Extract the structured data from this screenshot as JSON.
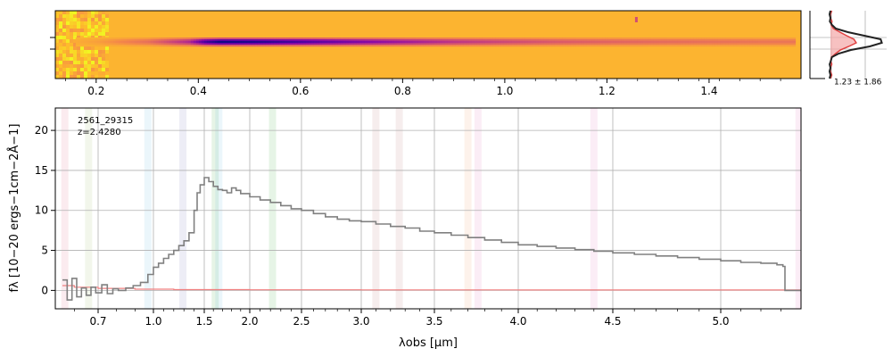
{
  "figure": {
    "object_id": "2561_29315",
    "redshift_label": "z=2.4280",
    "profile_label": "1.23 ± 1.86",
    "colors": {
      "spectrum": "#808080",
      "error": "#f08080",
      "grid": "#b0b0b0",
      "profile_fill": "#f4a6a6",
      "profile_red": "#e04040",
      "profile_line": "#222222"
    }
  },
  "chart_data": [
    {
      "type": "heatmap",
      "name": "2D spectrum",
      "colormap": "plasma",
      "xaxis_ticks": [
        "0.2",
        "0.4",
        "0.6",
        "0.8",
        "1.0",
        "1.2",
        "1.4"
      ],
      "xaxis_tick_values": [
        0.2,
        0.4,
        0.6,
        0.8,
        1.0,
        1.2,
        1.4
      ],
      "xlim": [
        0.12,
        1.58
      ],
      "trace": [
        {
          "x": 0.2,
          "level": 0.06
        },
        {
          "x": 0.3,
          "level": 0.22
        },
        {
          "x": 0.38,
          "level": 0.52
        },
        {
          "x": 0.41,
          "level": 0.85
        },
        {
          "x": 0.44,
          "level": 1.0
        },
        {
          "x": 0.5,
          "level": 0.96
        },
        {
          "x": 0.6,
          "level": 0.84
        },
        {
          "x": 0.7,
          "level": 0.7
        },
        {
          "x": 0.8,
          "level": 0.58
        },
        {
          "x": 0.9,
          "level": 0.46
        },
        {
          "x": 1.0,
          "level": 0.38
        },
        {
          "x": 1.1,
          "level": 0.31
        },
        {
          "x": 1.2,
          "level": 0.27
        },
        {
          "x": 1.3,
          "level": 0.24
        },
        {
          "x": 1.4,
          "level": 0.22
        },
        {
          "x": 1.5,
          "level": 0.2
        },
        {
          "x": 1.56,
          "level": 0.2
        }
      ]
    },
    {
      "type": "line",
      "name": "1D spectrum",
      "xlabel": "λobs [μm]",
      "ylabel": "fλ [10−20 ergs−1cm−2Å−1]",
      "xticks": [
        {
          "label": "0.7",
          "value": 0.7
        },
        {
          "label": "1.0",
          "value": 1.0
        },
        {
          "label": "1.5",
          "value": 1.5
        },
        {
          "label": "2.0",
          "value": 2.0
        },
        {
          "label": "2.5",
          "value": 2.5
        },
        {
          "label": "3.0",
          "value": 3.0
        },
        {
          "label": "3.5",
          "value": 3.5
        },
        {
          "label": "4.0",
          "value": 4.0
        },
        {
          "label": "4.5",
          "value": 4.5
        },
        {
          "label": "5.0",
          "value": 5.0
        }
      ],
      "yticks": [
        0,
        5,
        10,
        15,
        20
      ],
      "ylim": [
        -2.3,
        22.8
      ],
      "grid": true,
      "series": [
        {
          "role": "flux",
          "points": [
            [
              0.55,
              1.3
            ],
            [
              0.57,
              -1.2
            ],
            [
              0.59,
              1.5
            ],
            [
              0.61,
              -0.8
            ],
            [
              0.63,
              0.3
            ],
            [
              0.65,
              -0.6
            ],
            [
              0.67,
              0.4
            ],
            [
              0.69,
              -0.3
            ],
            [
              0.72,
              0.7
            ],
            [
              0.75,
              -0.4
            ],
            [
              0.78,
              0.2
            ],
            [
              0.81,
              0.0
            ],
            [
              0.85,
              0.3
            ],
            [
              0.89,
              0.6
            ],
            [
              0.93,
              1.0
            ],
            [
              0.97,
              2.0
            ],
            [
              1.0,
              2.9
            ],
            [
              1.05,
              3.4
            ],
            [
              1.1,
              4.0
            ],
            [
              1.15,
              4.5
            ],
            [
              1.2,
              5.0
            ],
            [
              1.25,
              5.6
            ],
            [
              1.3,
              6.2
            ],
            [
              1.35,
              7.2
            ],
            [
              1.4,
              10.0
            ],
            [
              1.43,
              12.2
            ],
            [
              1.46,
              13.2
            ],
            [
              1.5,
              14.1
            ],
            [
              1.55,
              13.6
            ],
            [
              1.6,
              13.0
            ],
            [
              1.65,
              12.6
            ],
            [
              1.7,
              12.5
            ],
            [
              1.75,
              12.2
            ],
            [
              1.8,
              12.8
            ],
            [
              1.85,
              12.5
            ],
            [
              1.9,
              12.1
            ],
            [
              2.0,
              11.7
            ],
            [
              2.1,
              11.3
            ],
            [
              2.2,
              11.0
            ],
            [
              2.3,
              10.6
            ],
            [
              2.4,
              10.2
            ],
            [
              2.5,
              10.0
            ],
            [
              2.6,
              9.6
            ],
            [
              2.7,
              9.2
            ],
            [
              2.8,
              8.9
            ],
            [
              2.9,
              8.7
            ],
            [
              3.0,
              8.6
            ],
            [
              3.1,
              8.3
            ],
            [
              3.2,
              8.0
            ],
            [
              3.3,
              7.8
            ],
            [
              3.4,
              7.4
            ],
            [
              3.5,
              7.2
            ],
            [
              3.6,
              6.9
            ],
            [
              3.7,
              6.6
            ],
            [
              3.8,
              6.3
            ],
            [
              3.9,
              6.0
            ],
            [
              4.0,
              5.7
            ],
            [
              4.1,
              5.5
            ],
            [
              4.2,
              5.3
            ],
            [
              4.3,
              5.1
            ],
            [
              4.4,
              4.9
            ],
            [
              4.5,
              4.7
            ],
            [
              4.6,
              4.5
            ],
            [
              4.7,
              4.3
            ],
            [
              4.8,
              4.1
            ],
            [
              4.9,
              3.9
            ],
            [
              5.0,
              3.7
            ],
            [
              5.1,
              3.5
            ],
            [
              5.2,
              3.4
            ],
            [
              5.28,
              3.2
            ],
            [
              5.31,
              3.0
            ],
            [
              5.32,
              0.0
            ],
            [
              5.4,
              0.0
            ]
          ]
        },
        {
          "role": "error",
          "points": [
            [
              0.55,
              0.6
            ],
            [
              0.6,
              0.4
            ],
            [
              0.7,
              0.25
            ],
            [
              0.9,
              0.15
            ],
            [
              1.2,
              0.1
            ],
            [
              2.0,
              0.08
            ],
            [
              3.0,
              0.06
            ],
            [
              4.0,
              0.05
            ],
            [
              5.0,
              0.05
            ],
            [
              5.32,
              0.05
            ],
            [
              5.4,
              0.05
            ]
          ]
        }
      ],
      "line_bands": [
        {
          "x": 0.56,
          "color": "#e07090"
        },
        {
          "x": 0.66,
          "color": "#a0c070"
        },
        {
          "x": 0.97,
          "color": "#70c0e0"
        },
        {
          "x": 1.29,
          "color": "#8080c0"
        },
        {
          "x": 1.62,
          "color": "#50b050"
        },
        {
          "x": 1.66,
          "color": "#70c0e0"
        },
        {
          "x": 2.22,
          "color": "#50b050"
        },
        {
          "x": 3.1,
          "color": "#c08080"
        },
        {
          "x": 3.26,
          "color": "#c08080"
        },
        {
          "x": 3.7,
          "color": "#f0a070"
        },
        {
          "x": 3.76,
          "color": "#e080c0"
        },
        {
          "x": 4.4,
          "color": "#e080c0"
        },
        {
          "x": 5.39,
          "color": "#e080c0"
        }
      ]
    }
  ]
}
